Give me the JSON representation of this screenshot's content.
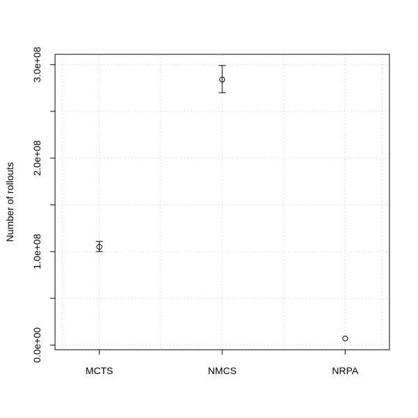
{
  "chart_data": {
    "type": "scatter",
    "title": "",
    "xlabel": "",
    "ylabel": "Number of rollouts",
    "categories": [
      "MCTS",
      "NMCS",
      "NRPA"
    ],
    "values": [
      105000000,
      284000000,
      7000000
    ],
    "error_low": [
      100000000,
      270000000,
      7000000
    ],
    "error_high": [
      111000000,
      299000000,
      7000000
    ],
    "ylim": [
      -5000000,
      311000000
    ],
    "y_ticks": [
      0,
      100000000,
      200000000,
      300000000
    ],
    "y_tick_labels": [
      "0.0e+00",
      "1.0e+08",
      "2.0e+08",
      "3.0e+08"
    ],
    "y_minor_ticks": [
      50000000,
      150000000,
      250000000
    ],
    "grid": true,
    "legend": "none"
  }
}
